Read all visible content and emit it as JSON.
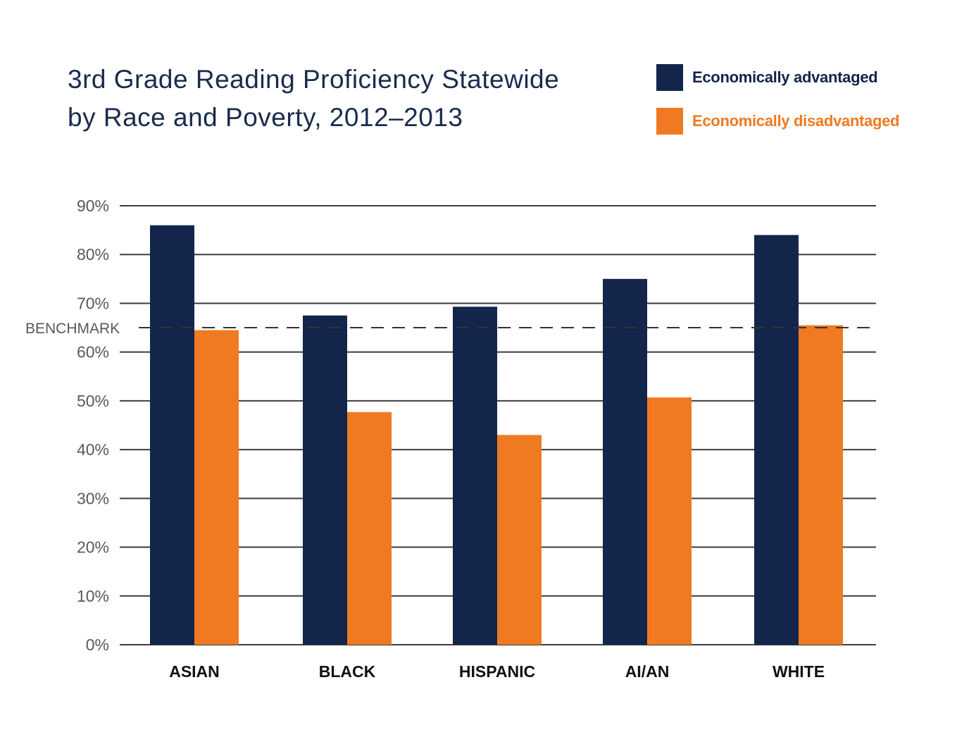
{
  "title_line1": "3rd Grade Reading Proficiency Statewide",
  "title_line2": "by Race and Poverty, 2012–2013",
  "colors": {
    "advantaged": "#13254a",
    "disadvantaged": "#ef7a22",
    "grid": "#3d3d3d",
    "title": "#1a2b4c"
  },
  "chart_data": {
    "type": "bar",
    "categories": [
      "ASIAN",
      "BLACK",
      "HISPANIC",
      "AI/AN",
      "WHITE"
    ],
    "series": [
      {
        "name": "Economically advantaged",
        "values": [
          86,
          67.5,
          69.3,
          75,
          84
        ]
      },
      {
        "name": "Economically disadvantaged",
        "values": [
          64.5,
          47.7,
          43,
          50.7,
          65.5
        ]
      }
    ],
    "ylim": [
      0,
      90
    ],
    "yticks": [
      "0%",
      "10%",
      "20%",
      "30%",
      "40%",
      "50%",
      "60%",
      "70%",
      "80%",
      "90%"
    ],
    "benchmark": {
      "label": "BENCHMARK",
      "value": 65
    },
    "grid": true,
    "legend_position": "top-right",
    "xlabel": "",
    "ylabel": ""
  }
}
